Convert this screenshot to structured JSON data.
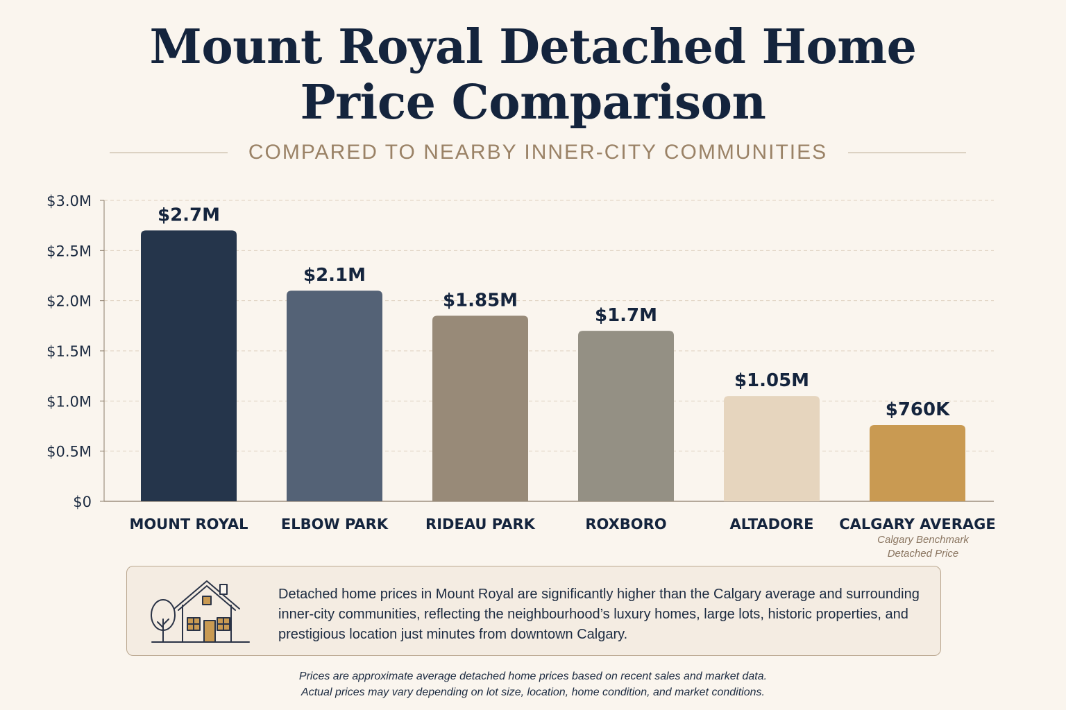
{
  "header": {
    "title_line1": "Mount Royal Detached Home",
    "title_line2": "Price Comparison",
    "subtitle": "COMPARED TO NEARBY INNER-CITY COMMUNITIES"
  },
  "chart_data": {
    "type": "bar",
    "title": "Mount Royal Detached Home Price Comparison",
    "subtitle": "COMPARED TO NEARBY INNER-CITY COMMUNITIES",
    "categories": [
      "MOUNT ROYAL",
      "ELBOW PARK",
      "RIDEAU PARK",
      "ROXBORO",
      "ALTADORE",
      "CALGARY AVERAGE"
    ],
    "values": [
      2700000,
      2100000,
      1850000,
      1700000,
      1050000,
      760000
    ],
    "value_labels": [
      "$2.7M",
      "$2.1M",
      "$1.85M",
      "$1.7M",
      "$1.05M",
      "$760K"
    ],
    "bar_colors": [
      "#25354b",
      "#546276",
      "#988a78",
      "#949084",
      "#e6d5be",
      "#c99a52"
    ],
    "ylim": [
      0,
      3000000
    ],
    "yticks": [
      0,
      500000,
      1000000,
      1500000,
      2000000,
      2500000,
      3000000
    ],
    "ytick_labels": [
      "$0",
      "$0.5M",
      "$1.0M",
      "$1.5M",
      "$2.0M",
      "$2.5M",
      "$3.0M"
    ],
    "xlabel": "",
    "ylabel": "",
    "grid": true,
    "category_note": [
      "Calgary Benchmark",
      "Detached Price"
    ]
  },
  "info_box": {
    "icon": "house-icon",
    "lines": [
      "Detached home prices in Mount Royal are significantly higher than the Calgary average and surrounding",
      "inner-city communities, reflecting the neighbourhood’s luxury homes, large lots, historic properties, and",
      "prestigious location just minutes from downtown Calgary."
    ]
  },
  "footnote": {
    "line1": "Prices are approximate average detached home prices based on recent sales and market data.",
    "line2": "Actual prices may vary depending on lot size, location, home condition, and market conditions."
  },
  "colors": {
    "background": "#faf5ee",
    "title": "#14243d",
    "accent": "#9a8266",
    "calgary_average": "#c99a52"
  }
}
